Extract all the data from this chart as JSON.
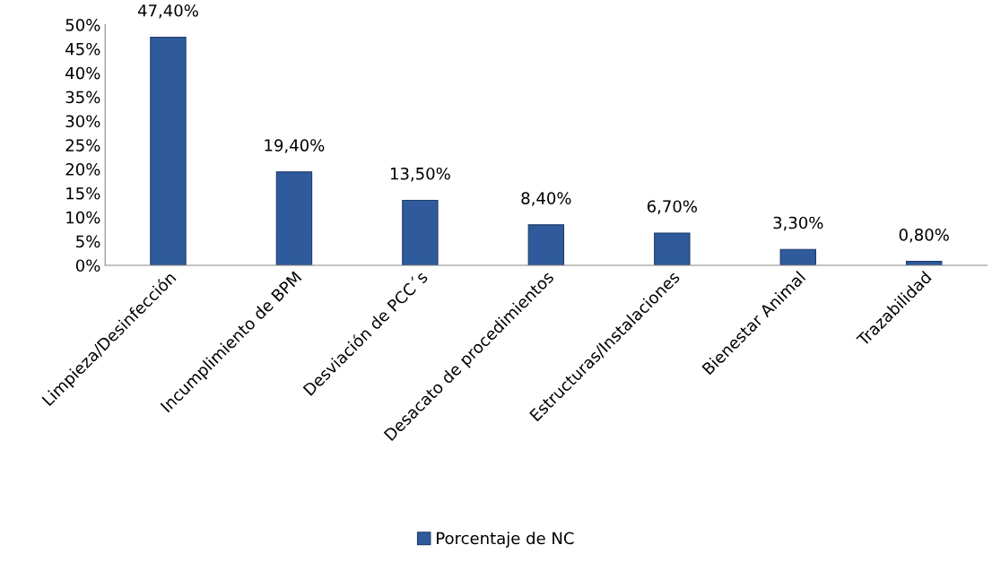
{
  "chart_data": {
    "type": "bar",
    "categories": [
      "Limpieza/Desinfección",
      "Incumplimiento de BPM",
      "Desviación de PCC´s",
      "Desacato de procedimientos",
      "Estructuras/Instalaciones",
      "Bienestar Animal",
      "Trazabilidad"
    ],
    "series": [
      {
        "name": "Porcentaje de NC",
        "color": "#2f5b9c",
        "values": [
          47.4,
          19.4,
          13.5,
          8.4,
          6.7,
          3.3,
          0.8
        ],
        "value_labels": [
          "47,40%",
          "19,40%",
          "13,50%",
          "8,40%",
          "6,70%",
          "3,30%",
          "0,80%"
        ]
      }
    ],
    "ylim": [
      0,
      50
    ],
    "yticks": [
      {
        "value": 0,
        "label": "0%"
      },
      {
        "value": 5,
        "label": "5%"
      },
      {
        "value": 10,
        "label": "10%"
      },
      {
        "value": 15,
        "label": "15%"
      },
      {
        "value": 20,
        "label": "20%"
      },
      {
        "value": 25,
        "label": "25%"
      },
      {
        "value": 30,
        "label": "30%"
      },
      {
        "value": 35,
        "label": "35%"
      },
      {
        "value": 40,
        "label": "40%"
      },
      {
        "value": 45,
        "label": "45%"
      },
      {
        "value": 50,
        "label": "50%"
      }
    ],
    "grid": false,
    "legend": "bottom"
  }
}
